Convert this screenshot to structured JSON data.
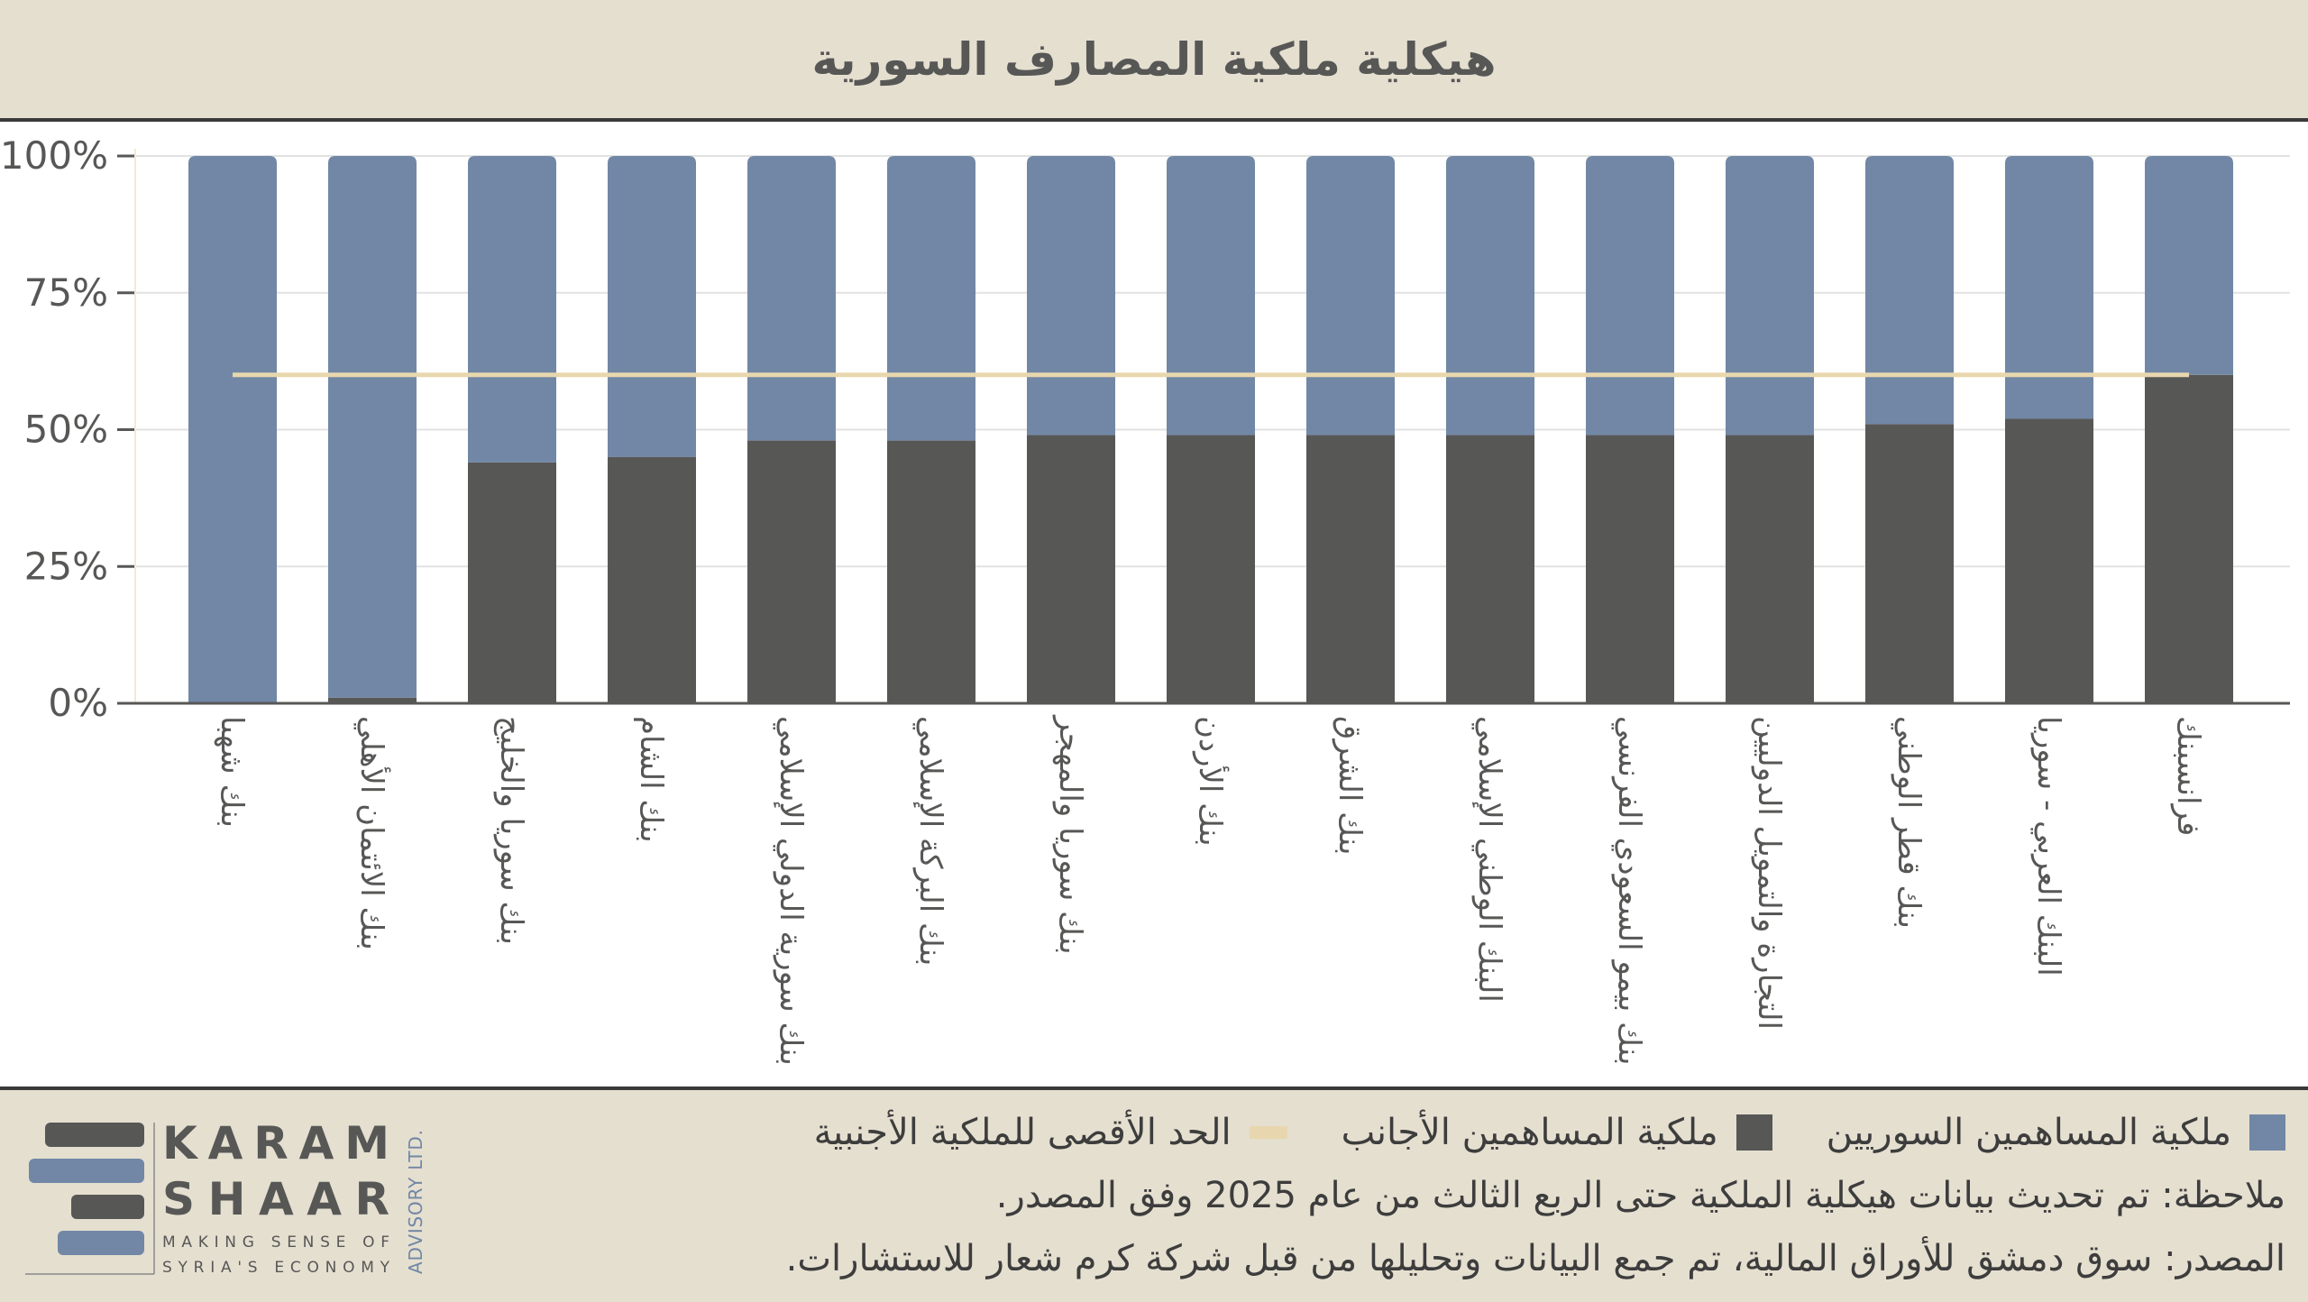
{
  "title": "هيكلية ملكية المصارف السورية",
  "colors": {
    "syrian": "#7187a5",
    "foreign": "#575756",
    "limit": "#e8d7ae",
    "background": "#e5dfd0"
  },
  "chart_data": {
    "type": "bar",
    "stacked": true,
    "title": "هيكلية ملكية المصارف السورية",
    "categories": [
      "بنك شهبا",
      "بنك الائتمان الأهلي",
      "بنك سوريا والخليج",
      "بنك الشام",
      "بنك سورية الدولي الإسلامي",
      "بنك البركة الإسلامي",
      "بنك سوريا والمهجر",
      "بنك الأردن",
      "بنك الشرق",
      "البنك الوطني الإسلامي",
      "بنك بيمو السعودي الفرنسي",
      "التجارة والتمويل الدوليين",
      "بنك قطر الوطني",
      "البنك العربي - سوريا",
      "فرانسبنك"
    ],
    "series": [
      {
        "name": "ملكية المساهمين الأجانب",
        "values": [
          0,
          1,
          44,
          45,
          48,
          48,
          49,
          49,
          49,
          49,
          49,
          49,
          51,
          52,
          60
        ]
      },
      {
        "name": "ملكية المساهمين السوريين",
        "values": [
          100,
          99,
          56,
          55,
          52,
          52,
          51,
          51,
          51,
          51,
          51,
          51,
          49,
          48,
          40
        ]
      }
    ],
    "reference_line": {
      "name": "الحد الأقصى للملكية الأجنبية",
      "value": 60
    },
    "ylim": [
      0,
      100
    ],
    "yticks": [
      "0%",
      "25%",
      "50%",
      "75%",
      "100%"
    ],
    "ytick_values": [
      0,
      25,
      50,
      75,
      100
    ],
    "grid": true,
    "legend_position": "bottom"
  },
  "legend": {
    "syrian": "ملكية المساهمين السوريين",
    "foreign": "ملكية المساهمين الأجانب",
    "limit": "الحد الأقصى للملكية الأجنبية"
  },
  "note": "ملاحظة: تم تحديث بيانات هيكلية الملكية حتى الربع الثالث من عام 2025 وفق المصدر.",
  "source": "المصدر: سوق دمشق للأوراق المالية، تم جمع البيانات وتحليلها من قبل شركة كرم شعار للاستشارات.",
  "logo": {
    "line1": "KARAM",
    "line2": "SHAAR",
    "tagline1": "MAKING SENSE OF",
    "tagline2": "SYRIA'S ECONOMY",
    "side": "ADVISORY LTD."
  }
}
